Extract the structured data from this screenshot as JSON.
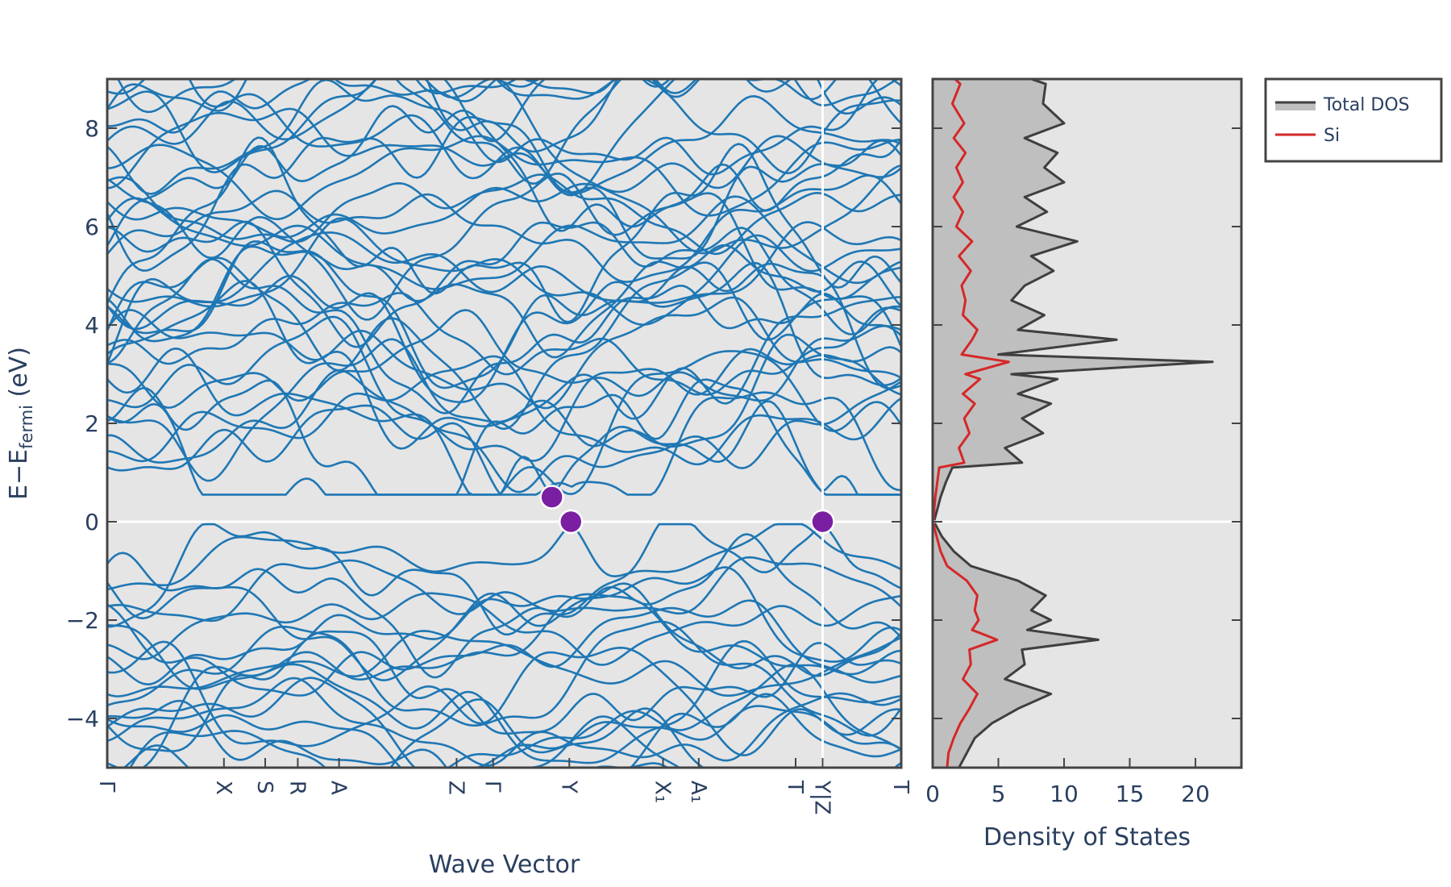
{
  "colors": {
    "plot_bg": "#e5e5e5",
    "band": "#1f77b4",
    "dos_total": "#3f3f3f",
    "dos_fill": "#bfbfbf",
    "dos_si": "#d62728",
    "marker": "#7b1fa2",
    "zero_line": "#ffffff",
    "frame": "#444444",
    "text": "#2a3f5f"
  },
  "chart_data": [
    {
      "type": "line",
      "subtype": "band-structure",
      "xlabel": "Wave Vector",
      "ylabel": "E−E",
      "ylabel_sub": "fermi",
      "ylabel_unit": " (eV)",
      "ylim": [
        -5,
        9
      ],
      "y_ticks": [
        -4,
        -2,
        0,
        2,
        4,
        6,
        8
      ],
      "x_range": [
        0,
        100
      ],
      "kpoints": [
        {
          "label": "Γ",
          "x": 0
        },
        {
          "label": "X",
          "x": 14.7
        },
        {
          "label": "S",
          "x": 19.9
        },
        {
          "label": "R",
          "x": 24.0
        },
        {
          "label": "A",
          "x": 29.2
        },
        {
          "label": "Z",
          "x": 44.0
        },
        {
          "label": "Γ",
          "x": 48.6
        },
        {
          "label": "Y",
          "x": 58.2
        },
        {
          "label": "X₁",
          "x": 70.0
        },
        {
          "label": "A₁",
          "x": 74.5
        },
        {
          "label": "T",
          "x": 86.7
        },
        {
          "label": "Y|Z",
          "x": 90.1
        },
        {
          "label": "T",
          "x": 100
        }
      ],
      "segment_break_x": 90.1,
      "band_extrema_markers": [
        {
          "x": 56.0,
          "y": 0.5
        },
        {
          "x": 58.4,
          "y": 0.0
        },
        {
          "x": 90.1,
          "y": 0.0
        }
      ],
      "conduction_band_min": 0.5,
      "valence_band_max": 0.0,
      "grid": false
    },
    {
      "type": "area",
      "subtype": "density-of-states",
      "xlabel": "Density of States",
      "xlim": [
        0,
        23.5
      ],
      "x_ticks": [
        0,
        5,
        10,
        15,
        20
      ],
      "ylim": [
        -5,
        9
      ],
      "legend": "top-right",
      "series": [
        {
          "name": "Total DOS",
          "energy": [
            -5.0,
            -4.7,
            -4.4,
            -4.1,
            -3.8,
            -3.5,
            -3.2,
            -2.9,
            -2.6,
            -2.4,
            -2.2,
            -2.0,
            -1.8,
            -1.5,
            -1.2,
            -0.9,
            -0.6,
            -0.3,
            -0.1,
            0.0,
            0.2,
            0.5,
            0.8,
            1.1,
            1.2,
            1.5,
            1.8,
            2.1,
            2.4,
            2.6,
            2.9,
            3.0,
            3.25,
            3.4,
            3.7,
            3.9,
            4.2,
            4.5,
            4.8,
            5.1,
            5.4,
            5.7,
            6.0,
            6.3,
            6.6,
            6.9,
            7.2,
            7.5,
            7.8,
            8.1,
            8.5,
            8.9,
            9.0
          ],
          "values": [
            2.0,
            2.6,
            3.2,
            4.5,
            6.5,
            9.0,
            5.5,
            7.0,
            6.8,
            12.6,
            7.2,
            9.0,
            7.5,
            8.6,
            6.5,
            2.9,
            1.6,
            0.7,
            0.3,
            0.1,
            0.3,
            0.6,
            1.0,
            1.5,
            6.8,
            5.5,
            8.4,
            6.8,
            9.0,
            6.5,
            9.5,
            6.0,
            21.3,
            5.0,
            14.0,
            6.5,
            8.5,
            6.0,
            7.0,
            9.2,
            7.5,
            11.0,
            6.4,
            8.7,
            7.0,
            10.0,
            8.5,
            9.5,
            7.0,
            10.0,
            8.4,
            8.6,
            7.5
          ]
        },
        {
          "name": "Si",
          "energy": [
            -5.0,
            -4.7,
            -4.4,
            -4.1,
            -3.8,
            -3.5,
            -3.2,
            -2.9,
            -2.6,
            -2.4,
            -2.2,
            -2.0,
            -1.8,
            -1.5,
            -1.2,
            -0.9,
            -0.6,
            -0.3,
            -0.1,
            0.0,
            0.2,
            0.5,
            0.8,
            1.1,
            1.2,
            1.5,
            1.8,
            2.1,
            2.4,
            2.6,
            2.9,
            3.0,
            3.25,
            3.4,
            3.7,
            3.9,
            4.2,
            4.5,
            4.8,
            5.1,
            5.4,
            5.7,
            6.0,
            6.3,
            6.6,
            6.9,
            7.2,
            7.5,
            7.8,
            8.1,
            8.5,
            8.9,
            9.0
          ],
          "values": [
            1.1,
            1.2,
            1.6,
            2.1,
            2.8,
            3.4,
            2.3,
            2.9,
            2.8,
            4.9,
            3.0,
            3.5,
            3.2,
            3.4,
            2.6,
            1.1,
            0.6,
            0.3,
            0.1,
            0.05,
            0.1,
            0.2,
            0.35,
            0.5,
            2.4,
            2.0,
            2.8,
            2.4,
            3.2,
            2.3,
            3.6,
            2.5,
            5.8,
            2.2,
            3.0,
            3.4,
            2.3,
            2.5,
            2.2,
            2.9,
            2.0,
            3.0,
            1.8,
            2.3,
            1.6,
            2.3,
            1.8,
            2.5,
            1.6,
            2.4,
            1.5,
            2.1,
            1.7
          ]
        }
      ]
    }
  ]
}
